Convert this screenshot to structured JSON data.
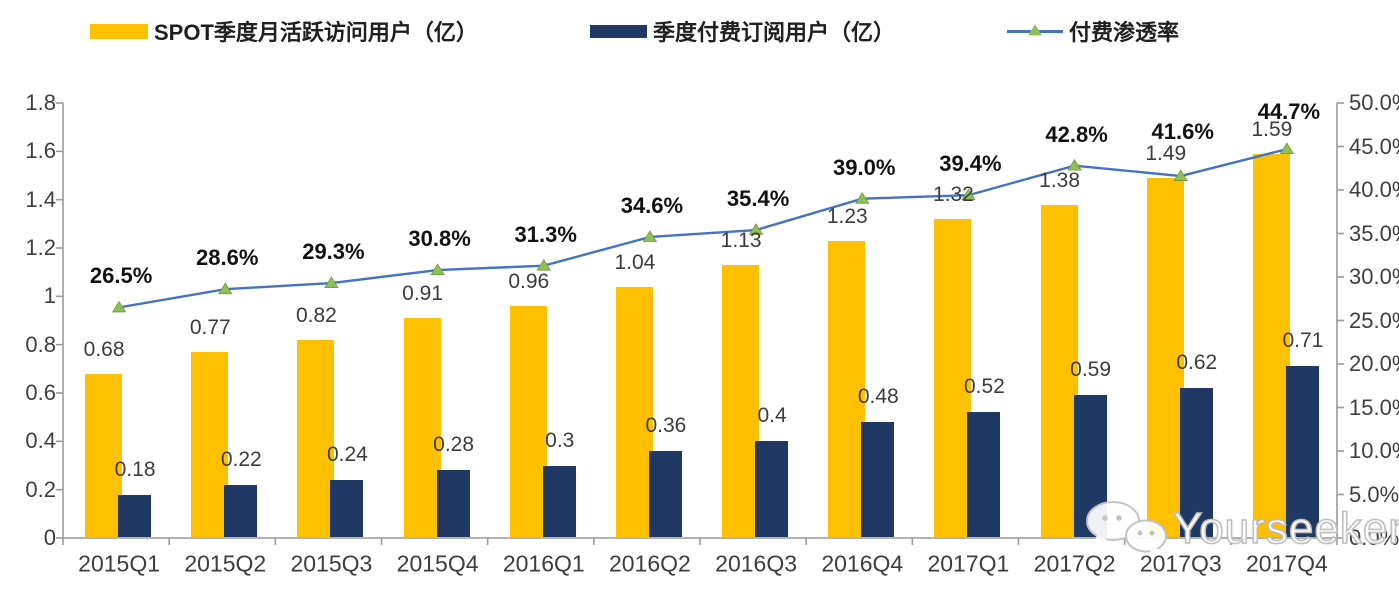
{
  "chart_data": {
    "type": "combo-bar-line",
    "title": "",
    "categories": [
      "2015Q1",
      "2015Q2",
      "2015Q3",
      "2015Q4",
      "2016Q1",
      "2016Q2",
      "2016Q3",
      "2016Q4",
      "2017Q1",
      "2017Q2",
      "2017Q3",
      "2017Q4"
    ],
    "series": [
      {
        "name": "SPOT季度月活跃访问用户（亿）",
        "type": "bar",
        "axis": "left",
        "color": "#FFC000",
        "values": [
          0.68,
          0.77,
          0.82,
          0.91,
          0.96,
          1.04,
          1.13,
          1.23,
          1.32,
          1.38,
          1.49,
          1.59
        ],
        "labels": [
          "0.68",
          "0.77",
          "0.82",
          "0.91",
          "0.96",
          "1.04",
          "1.13",
          "1.23",
          "1.32",
          "1.38",
          "1.49",
          "1.59"
        ]
      },
      {
        "name": "季度付费订阅用户（亿）",
        "type": "bar",
        "axis": "left",
        "color": "#1F3864",
        "values": [
          0.18,
          0.22,
          0.24,
          0.28,
          0.3,
          0.36,
          0.4,
          0.48,
          0.52,
          0.59,
          0.62,
          0.71
        ],
        "labels": [
          "0.18",
          "0.22",
          "0.24",
          "0.28",
          "0.3",
          "0.36",
          "0.4",
          "0.48",
          "0.52",
          "0.59",
          "0.62",
          "0.71"
        ]
      },
      {
        "name": "付费渗透率",
        "type": "line",
        "axis": "right",
        "color": "#4472C4",
        "marker": "triangle",
        "marker_color": "#8FBF57",
        "values": [
          26.5,
          28.6,
          29.3,
          30.8,
          31.3,
          34.6,
          35.4,
          39.0,
          39.4,
          42.8,
          41.6,
          44.7
        ],
        "labels": [
          "26.5%",
          "28.6%",
          "29.3%",
          "30.8%",
          "31.3%",
          "34.6%",
          "35.4%",
          "39.0%",
          "39.4%",
          "42.8%",
          "41.6%",
          "44.7%"
        ]
      }
    ],
    "left_axis": {
      "min": 0,
      "max": 1.8,
      "ticks": [
        "0",
        "0.2",
        "0.4",
        "0.6",
        "0.8",
        "1",
        "1.2",
        "1.4",
        "1.6",
        "1.8"
      ]
    },
    "right_axis": {
      "min": 0,
      "max": 50,
      "ticks": [
        "0.0%",
        "5.0%",
        "10.0%",
        "15.0%",
        "20.0%",
        "25.0%",
        "30.0%",
        "35.0%",
        "40.0%",
        "45.0%",
        "50.0%"
      ]
    },
    "grid": false,
    "legend_position": "top"
  },
  "watermark": {
    "text": "Yourseeker",
    "icon": "chat-bubbles-icon"
  },
  "colors": {
    "axis": "#9a9a9a",
    "tick_label": "#3f3f3f",
    "value_label": "#3c3c3c",
    "pct_label": "#121212",
    "background": "#ffffff"
  }
}
